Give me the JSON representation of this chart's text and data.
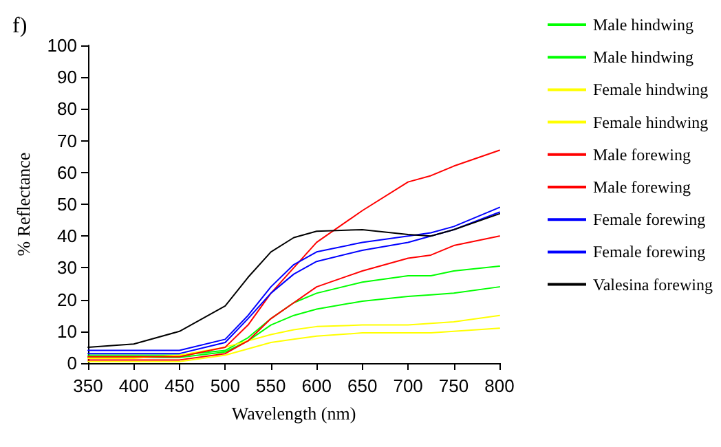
{
  "chart_data": {
    "type": "line",
    "title": "f)",
    "xlabel": "Wavelength (nm)",
    "ylabel": "% Reflectance",
    "x": [
      350,
      400,
      450,
      500,
      525,
      550,
      575,
      600,
      650,
      700,
      725,
      750,
      800
    ],
    "series": [
      {
        "name": "Male hindwing",
        "color": "#00ff00",
        "values": [
          2.5,
          2.5,
          2.5,
          4,
          8,
          14,
          19,
          22,
          25.5,
          27.5,
          27.5,
          29,
          30.5
        ]
      },
      {
        "name": "Male hindwing",
        "color": "#00ff00",
        "values": [
          1.8,
          1.8,
          1.8,
          3.5,
          7,
          12,
          15,
          17,
          19.5,
          21,
          21.5,
          22,
          24
        ]
      },
      {
        "name": "Female hindwing",
        "color": "#ffff00",
        "values": [
          1.5,
          1.5,
          2.5,
          5,
          7,
          9,
          10.5,
          11.5,
          12,
          12,
          12.5,
          13,
          15
        ]
      },
      {
        "name": "Female hindwing",
        "color": "#ffff00",
        "values": [
          0.5,
          0.5,
          0.5,
          2.5,
          4.5,
          6.5,
          7.5,
          8.5,
          9.5,
          9.5,
          9.5,
          10,
          11
        ]
      },
      {
        "name": "Male forewing",
        "color": "#ff0000",
        "values": [
          2,
          2,
          2,
          5,
          12,
          22,
          30,
          38,
          48,
          57,
          59,
          62,
          67
        ]
      },
      {
        "name": "Male forewing",
        "color": "#ff0000",
        "values": [
          1,
          1,
          1,
          3,
          7,
          14,
          19,
          24,
          29,
          33,
          34,
          37,
          40
        ]
      },
      {
        "name": "Female forewing",
        "color": "#0000ff",
        "values": [
          4,
          4,
          4,
          7.5,
          15,
          24,
          31,
          35,
          38,
          40,
          41,
          43,
          49
        ]
      },
      {
        "name": "Female forewing",
        "color": "#0000ff",
        "values": [
          3,
          3,
          3,
          6.5,
          14,
          22,
          28,
          32,
          35.5,
          38,
          40,
          42,
          47.5
        ]
      },
      {
        "name": "Valesina forewing",
        "color": "#000000",
        "values": [
          5,
          6,
          10,
          18,
          27,
          35,
          39.5,
          41.5,
          42,
          40.5,
          40,
          42,
          47
        ]
      }
    ],
    "xlim": [
      350,
      800
    ],
    "xticks": [
      350,
      400,
      450,
      500,
      550,
      600,
      650,
      700,
      750,
      800
    ],
    "ylim": [
      0,
      100
    ],
    "yticks": [
      0,
      10,
      20,
      30,
      40,
      50,
      60,
      70,
      80,
      90,
      100
    ],
    "grid": false,
    "legend": "right",
    "marker": "none",
    "line_style": "solid"
  }
}
